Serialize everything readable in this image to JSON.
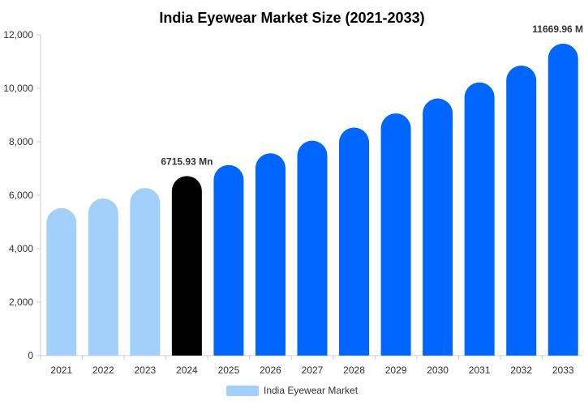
{
  "chart_data": {
    "type": "bar",
    "title": "India Eyewear Market Size (2021-2033)",
    "xlabel": "",
    "ylabel": "",
    "categories": [
      "2021",
      "2022",
      "2023",
      "2024",
      "2025",
      "2026",
      "2027",
      "2028",
      "2029",
      "2030",
      "2031",
      "2032",
      "2033"
    ],
    "series": [
      {
        "name": "India Eyewear Market",
        "values": [
          5520,
          5880,
          6270,
          6715.93,
          7130,
          7570,
          8040,
          8530,
          9060,
          9620,
          10220,
          10850,
          11669.96
        ]
      }
    ],
    "bar_colors": [
      "#a3cffb",
      "#a3cffb",
      "#a3cffb",
      "#000000",
      "#0066ff",
      "#0066ff",
      "#0066ff",
      "#0066ff",
      "#0066ff",
      "#0066ff",
      "#0066ff",
      "#0066ff",
      "#0066ff"
    ],
    "legend_color": "#a3cffb",
    "ylim": [
      0,
      12000
    ],
    "yticks": [
      0,
      2000,
      4000,
      6000,
      8000,
      10000,
      12000
    ],
    "ytick_labels": [
      "0",
      "2,000",
      "4,000",
      "6,000",
      "8,000",
      "10,000",
      "12,000"
    ],
    "data_labels": [
      {
        "category": "2024",
        "text": "6715.93 Mn"
      },
      {
        "category": "2033",
        "text": "11669.96 M"
      }
    ],
    "grid": false,
    "legend_position": "bottom-center"
  }
}
